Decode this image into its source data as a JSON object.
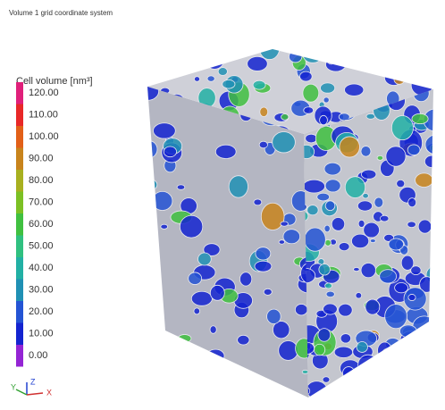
{
  "header": {
    "title": "Volume 1 grid coordinate system"
  },
  "legend": {
    "title": "Cell volume [nm³]",
    "entries": [
      {
        "label": "120.00",
        "color": "#e0207a"
      },
      {
        "label": "110.00",
        "color": "#e82828"
      },
      {
        "label": "100.00",
        "color": "#e26018"
      },
      {
        "label": "90.00",
        "color": "#c8841c"
      },
      {
        "label": "80.00",
        "color": "#a8b020"
      },
      {
        "label": "70.00",
        "color": "#7cc024"
      },
      {
        "label": "60.00",
        "color": "#40c040"
      },
      {
        "label": "50.00",
        "color": "#30c080"
      },
      {
        "label": "40.00",
        "color": "#22b0a4"
      },
      {
        "label": "30.00",
        "color": "#2090b4"
      },
      {
        "label": "20.00",
        "color": "#2454d4"
      },
      {
        "label": "10.00",
        "color": "#1424d0"
      },
      {
        "label": "0.00",
        "color": "#9424d4"
      }
    ]
  },
  "axes_triad": {
    "z": "Z",
    "y": "Y",
    "x": "X"
  }
}
